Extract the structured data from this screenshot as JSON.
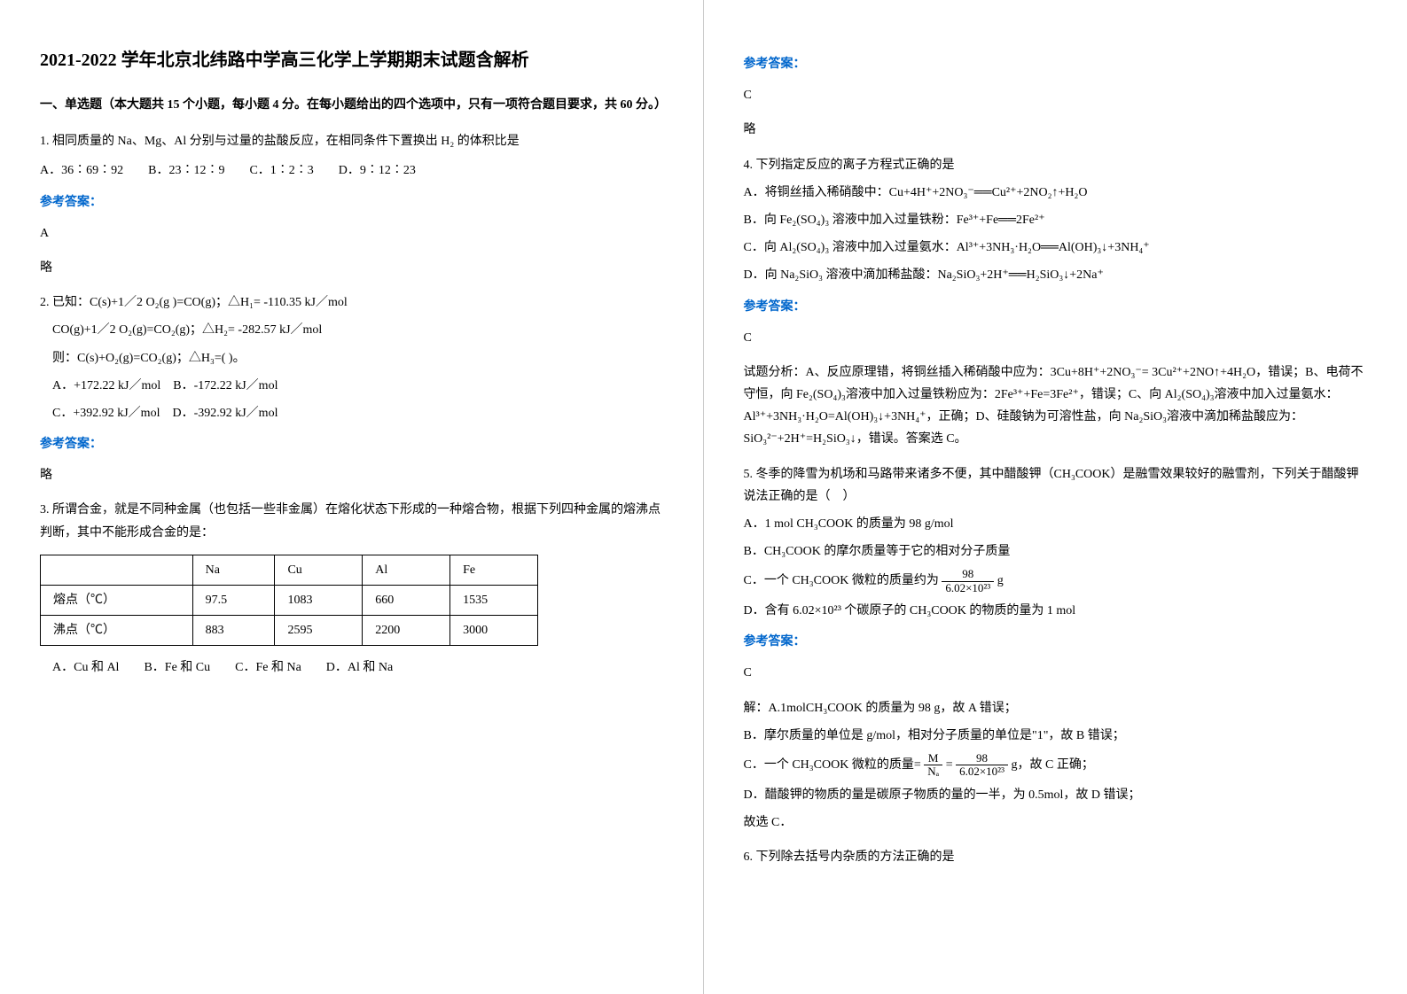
{
  "title": "2021-2022 学年北京北纬路中学高三化学上学期期末试题含解析",
  "section1": "一、单选题（本大题共 15 个小题，每小题 4 分。在每小题给出的四个选项中，只有一项符合题目要求，共 60 分。）",
  "answer_label": "参考答案：",
  "q1": {
    "text": "1. 相同质量的 Na、Mg、Al 分别与过量的盐酸反应，在相同条件下置换出 H₂ 的体积比是",
    "opts": "A．36∶69∶92  B．23∶12∶9  C．1∶2∶3  D．9∶12∶23",
    "ans": "A",
    "sol": "略"
  },
  "q2": {
    "l1": "2. 已知：C(s)+1／2 O₂(g  )=CO(g)；△H₁= -110.35 kJ／mol",
    "l2": "CO(g)+1／2 O₂(g)=CO₂(g)；△H₂= -282.57 kJ／mol",
    "l3": "则：C(s)+O₂(g)=CO₂(g)；△H₃=(   )。",
    "l4": "A．+172.22 kJ／mol B．-172.22 kJ／mol",
    "l5": "C．+392.92 kJ／mol D．-392.92 kJ／mol",
    "ans": "略"
  },
  "q3": {
    "text": "3. 所谓合金，就是不同种金属（也包括一些非金属）在熔化状态下形成的一种熔合物，根据下列四种金属的熔沸点判断，其中不能形成合金的是：",
    "table": {
      "header": [
        "",
        "Na",
        "Cu",
        "Al",
        "Fe"
      ],
      "row1": [
        "熔点（℃）",
        "97.5",
        "1083",
        "660",
        "1535"
      ],
      "row2": [
        "沸点（℃）",
        "883",
        "2595",
        "2200",
        "3000"
      ]
    },
    "opts": "A．Cu 和 Al  B．Fe 和 Cu  C．Fe 和 Na  D．Al 和 Na",
    "ans": "C",
    "sol": "略"
  },
  "q4": {
    "text": "4. 下列指定反应的离子方程式正确的是",
    "a": "A．将铜丝插入稀硝酸中：Cu+4H⁺+2NO₃⁻══Cu²⁺+2NO₂↑+H₂O",
    "b": "B．向 Fe₂(SO₄)₃ 溶液中加入过量铁粉：Fe³⁺+Fe══2Fe²⁺",
    "c": "C．向 Al₂(SO₄)₃ 溶液中加入过量氨水：Al³⁺+3NH₃·H₂O══Al(OH)₃↓+3NH₄⁺",
    "d": "D．向 Na₂SiO₃ 溶液中滴加稀盐酸：Na₂SiO₃+2H⁺══H₂SiO₃↓+2Na⁺",
    "ans": "C",
    "sol": "试题分析：A、反应原理错，将铜丝插入稀硝酸中应为：3Cu+8H⁺+2NO₃⁻= 3Cu²⁺+2NO↑+4H₂O，错误；B、电荷不守恒，向 Fe₂(SO₄)₃溶液中加入过量铁粉应为：2Fe³⁺+Fe=3Fe²⁺，错误；C、向 Al₂(SO₄)₃溶液中加入过量氨水：Al³⁺+3NH₃·H₂O=Al(OH)₃↓+3NH₄⁺，正确；D、硅酸钠为可溶性盐，向 Na₂SiO₃溶液中滴加稀盐酸应为：SiO₃²⁻+2H⁺=H₂SiO₃↓，错误。答案选 C。"
  },
  "q5": {
    "text": "5. 冬季的降雪为机场和马路带来诸多不便，其中醋酸钾（CH₃COOK）是融雪效果较好的融雪剂，下列关于醋酸钾说法正确的是（ ）",
    "a": "A．1 mol CH₃COOK 的质量为 98 g/mol",
    "b": "B．CH₃COOK 的摩尔质量等于它的相对分子质量",
    "c_pre": "C．一个 CH₃COOK 微粒的质量约为",
    "c_num": "98",
    "c_den": "6.02×10²³",
    "c_post": " g",
    "d": "D．含有 6.02×10²³ 个碳原子的 CH₃COOK 的物质的量为 1 mol",
    "ans": "C",
    "sol_a": "解：A.1molCH₃COOK 的质量为 98 g，故 A 错误；",
    "sol_b": "B．摩尔质量的单位是 g/mol，相对分子质量的单位是\"1\"，故 B 错误；",
    "sol_c_pre": "C．一个 CH₃COOK 微粒的质量=",
    "sol_c_m": "M",
    "sol_c_na": "Nₐ",
    "sol_c_eq": "=",
    "sol_c_num": "98",
    "sol_c_den": "6.02×10²³",
    "sol_c_post": " g，故 C 正确；",
    "sol_d": "D．醋酸钾的物质的量是碳原子物质的量的一半，为 0.5mol，故 D 错误；",
    "sol_end": "故选 C．"
  },
  "q6": {
    "text": "6. 下列除去括号内杂质的方法正确的是"
  }
}
